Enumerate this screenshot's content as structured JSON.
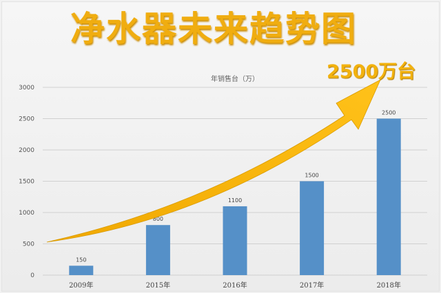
{
  "title": "净水器未来趋势图",
  "callout": "2500万台",
  "colors": {
    "bar": "#5590c8",
    "arrow": "#f5b400",
    "title": "#f0ad10",
    "grid": "#d0d0d0"
  },
  "chart_data": {
    "type": "bar",
    "title": "年销售台（万）",
    "categories": [
      "2009年",
      "2015年",
      "2016年",
      "2017年",
      "2018年"
    ],
    "values": [
      150,
      800,
      1100,
      1500,
      2500
    ],
    "data_labels": [
      "150",
      "800",
      "1100",
      "1500",
      "2500"
    ],
    "ylim": [
      0,
      3000
    ],
    "yticks": [
      "0",
      "500",
      "1000",
      "1500",
      "2000",
      "2500",
      "3000"
    ],
    "grid": true,
    "annotation": "upward trend arrow"
  }
}
